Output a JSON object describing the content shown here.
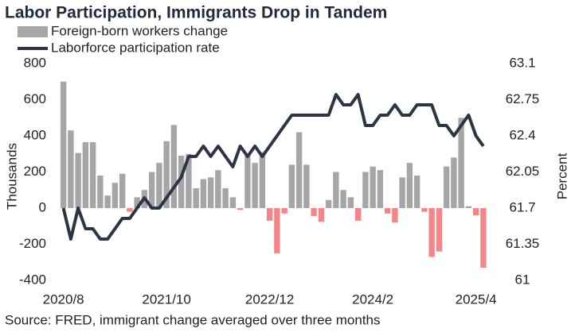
{
  "chart_data": {
    "type": "bar_line",
    "title": "Labor Participation, Immigrants Drop in Tandem",
    "source": "Source: FRED, immigrant change averaged over three months",
    "y_label": "Thousands",
    "y2_label": "Percent",
    "categories": [
      "2020/8",
      null,
      null,
      null,
      null,
      null,
      null,
      null,
      null,
      null,
      null,
      null,
      null,
      null,
      "2021/10",
      null,
      null,
      null,
      null,
      null,
      null,
      null,
      null,
      null,
      null,
      null,
      null,
      null,
      "2022/12",
      null,
      null,
      null,
      null,
      null,
      null,
      null,
      null,
      null,
      null,
      null,
      null,
      null,
      "2024/2",
      null,
      null,
      null,
      null,
      null,
      null,
      null,
      null,
      null,
      null,
      null,
      null,
      null,
      "2025/4",
      null
    ],
    "series": [
      {
        "name": "Foreign-born workers change",
        "type": "bar",
        "color": "#a6a6a6",
        "negative_color": "#f4868a",
        "values": [
          700,
          430,
          305,
          365,
          365,
          180,
          70,
          140,
          190,
          -20,
          60,
          100,
          200,
          250,
          370,
          460,
          290,
          300,
          110,
          160,
          170,
          210,
          110,
          60,
          -10,
          290,
          250,
          310,
          -70,
          -250,
          -30,
          240,
          420,
          240,
          -45,
          -75,
          45,
          200,
          100,
          60,
          -70,
          200,
          230,
          210,
          -30,
          -80,
          170,
          250,
          180,
          -20,
          -270,
          -240,
          230,
          280,
          500,
          10,
          -40,
          -330
        ]
      },
      {
        "name": "Laborforce participation rate",
        "type": "line",
        "color": "#2b3544",
        "axis": "y2",
        "values": [
          61.7,
          61.4,
          61.7,
          61.5,
          61.5,
          61.4,
          61.4,
          61.5,
          61.6,
          61.6,
          61.7,
          61.8,
          61.7,
          61.7,
          61.8,
          61.9,
          62.0,
          62.2,
          62.2,
          62.3,
          62.2,
          62.3,
          62.2,
          62.1,
          62.3,
          62.2,
          62.3,
          62.2,
          62.3,
          62.4,
          62.5,
          62.6,
          62.6,
          62.6,
          62.6,
          62.6,
          62.6,
          62.8,
          62.7,
          62.7,
          62.8,
          62.5,
          62.5,
          62.6,
          62.6,
          62.7,
          62.6,
          62.6,
          62.7,
          62.7,
          62.7,
          62.5,
          62.5,
          62.4,
          62.5,
          62.6,
          62.4,
          62.3
        ]
      }
    ],
    "ylim": [
      -400,
      800
    ],
    "yticks": [
      -400,
      -200,
      0,
      200,
      400,
      600,
      800
    ],
    "y2lim": [
      61,
      63.1
    ],
    "y2ticks": [
      61,
      61.35,
      61.7,
      62.05,
      62.4,
      62.75,
      63.1
    ],
    "grid": false
  }
}
